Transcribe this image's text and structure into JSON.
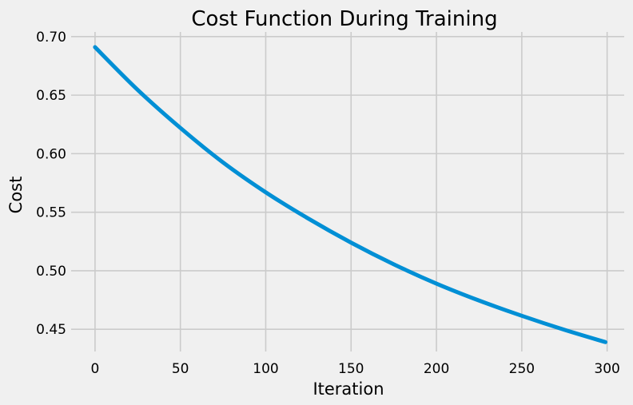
{
  "chart_data": {
    "type": "line",
    "title": "Cost Function During Training",
    "xlabel": "Iteration",
    "ylabel": "Cost",
    "xlim": [
      -14,
      310
    ],
    "ylim": [
      0.431,
      0.704
    ],
    "xticks": [
      0,
      50,
      100,
      150,
      200,
      250,
      300
    ],
    "yticks": [
      0.45,
      0.5,
      0.55,
      0.6,
      0.65,
      0.7
    ],
    "xtick_labels": [
      "0",
      "50",
      "100",
      "150",
      "200",
      "250",
      "300"
    ],
    "ytick_labels": [
      "0.45",
      "0.50",
      "0.55",
      "0.60",
      "0.65",
      "0.70"
    ],
    "grid": true,
    "series": [
      {
        "color": "#008fd5",
        "x": [
          0,
          25,
          50,
          75,
          100,
          125,
          150,
          175,
          200,
          225,
          250,
          275,
          299
        ],
        "y": [
          0.691,
          0.6545,
          0.622,
          0.5925,
          0.567,
          0.5445,
          0.524,
          0.5055,
          0.489,
          0.4745,
          0.4615,
          0.4495,
          0.439
        ]
      }
    ]
  }
}
